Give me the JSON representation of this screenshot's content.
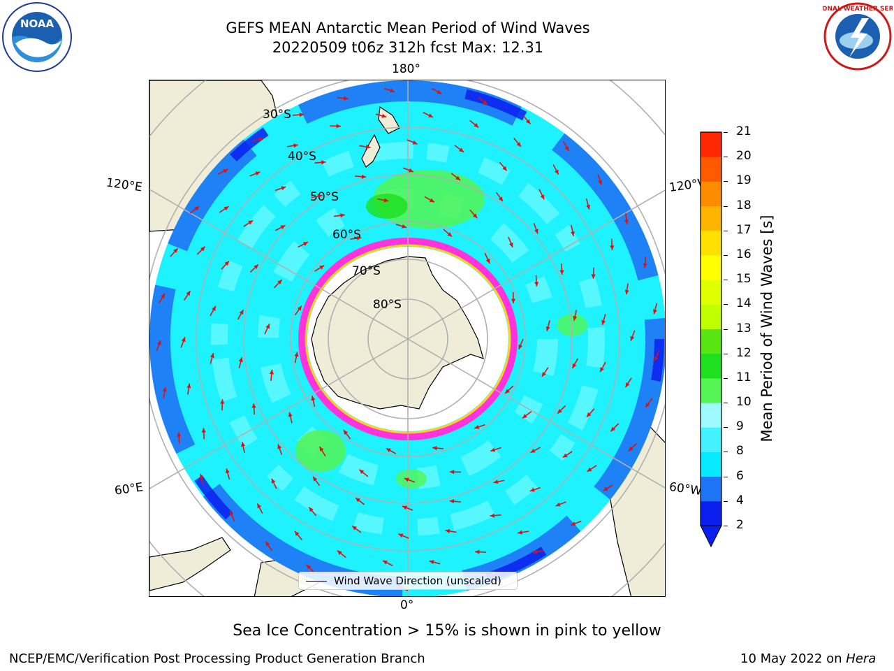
{
  "title": {
    "line1": "GEFS MEAN Antarctic Mean Period of Wind Waves",
    "line2": "20220509 t06z 312h fcst   Max: 12.31"
  },
  "logos": {
    "left": {
      "name": "NOAA",
      "text": "NOAA"
    },
    "right": {
      "name": "National Weather Service",
      "text": "NATIONAL WEATHER SERVICE"
    }
  },
  "map": {
    "projection": "South Polar Stereographic",
    "longitude_labels": {
      "top": "180°",
      "bottom": "0°",
      "upper_left": "120°E",
      "upper_right": "120°W",
      "lower_left": "60°E",
      "lower_right": "60°W"
    },
    "latitude_labels": [
      "30°S",
      "40°S",
      "50°S",
      "60°S",
      "70°S",
      "80°S"
    ],
    "colors": {
      "land": "#efedd8",
      "ocean_main": "#1ef2ff",
      "ocean_light": "#7cfaff",
      "ocean_dark": "#1e74f5",
      "ocean_darkest": "#0a1ef0",
      "green_patch": "#54f554",
      "green_dark": "#1ee01e",
      "ice_pink": "#ff33dd",
      "ice_yellow": "#ffd21e",
      "arrow": "#e01010",
      "grid": "#b0b0b0"
    },
    "legend_label": "Wind Wave Direction (unscaled)"
  },
  "colorbar": {
    "title": "Mean Period of Wind Waves [s]",
    "ticks": [
      "2",
      "4",
      "6",
      "8",
      "9",
      "10",
      "11",
      "12",
      "13",
      "14",
      "15",
      "16",
      "17",
      "18",
      "19",
      "20",
      "21"
    ],
    "colors": [
      "#0a1ef0",
      "#1e74f5",
      "#05eaff",
      "#44f2ff",
      "#9dfbff",
      "#54f554",
      "#1ee01e",
      "#59e414",
      "#c0ff00",
      "#e0ff00",
      "#ffff00",
      "#ffe000",
      "#ffb400",
      "#ff8c00",
      "#ff5a00",
      "#ff2800",
      "#ff0000"
    ]
  },
  "footer": {
    "note": "Sea Ice Concentration > 15% is shown in pink to yellow",
    "left": "NCEP/EMC/Verification Post Processing Product Generation Branch",
    "right_date": "10 May 2022 on",
    "right_host": "Hera"
  }
}
